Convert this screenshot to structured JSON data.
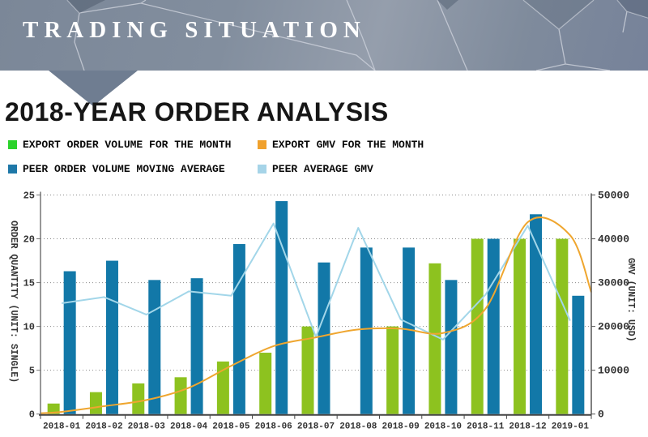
{
  "banner": {
    "title": "TRADING SITUATION"
  },
  "heading": "2018-YEAR ORDER ANALYSIS",
  "legend": {
    "items": [
      {
        "label": "EXPORT ORDER VOLUME FOR THE MONTH",
        "color": "#2bd32b",
        "row": 0,
        "col": 0
      },
      {
        "label": "EXPORT GMV FOR THE MONTH",
        "color": "#f0a12d",
        "row": 0,
        "col": 1
      },
      {
        "label": "PEER ORDER VOLUME MOVING AVERAGE",
        "color": "#1e78a8",
        "row": 1,
        "col": 0
      },
      {
        "label": "PEER AVERAGE GMV",
        "color": "#a6d4e8",
        "row": 1,
        "col": 1
      }
    ]
  },
  "chart_data": {
    "type": "combo-bar-line",
    "title": "2018-YEAR ORDER ANALYSIS",
    "categories": [
      "2018-01",
      "2018-02",
      "2018-03",
      "2018-04",
      "2018-05",
      "2018-06",
      "2018-07",
      "2018-08",
      "2018-09",
      "2018-10",
      "2018-11",
      "2018-12",
      "2019-01"
    ],
    "series": [
      {
        "name": "EXPORT ORDER VOLUME FOR THE MONTH",
        "type": "bar",
        "axis": "left",
        "color": "#8dc21f",
        "values": [
          1.2,
          2.5,
          3.5,
          4.2,
          6,
          7,
          10,
          0,
          10,
          17.2,
          20,
          20,
          20
        ]
      },
      {
        "name": "PEER ORDER VOLUME MOVING AVERAGE",
        "type": "bar",
        "axis": "left",
        "color": "#1278a8",
        "values": [
          16.3,
          17.5,
          15.3,
          15.5,
          19.4,
          24.3,
          17.3,
          19,
          19,
          15.3,
          20,
          22.8,
          13.5
        ]
      },
      {
        "name": "EXPORT GMV FOR THE MONTH",
        "type": "line",
        "smooth": true,
        "axis": "right",
        "color": "#efa62f",
        "values": [
          500,
          1800,
          3200,
          6000,
          11000,
          15500,
          17500,
          19300,
          19500,
          18500,
          24000,
          43800,
          40800
        ],
        "edge_left": 200,
        "edge_right": 27800
      },
      {
        "name": "PEER AVERAGE GMV",
        "type": "line",
        "smooth": false,
        "axis": "right",
        "color": "#a2d6e9",
        "values": [
          25300,
          26700,
          22700,
          28000,
          27000,
          43500,
          17600,
          42500,
          21600,
          17000,
          27200,
          43000,
          21300
        ]
      }
    ],
    "left_axis": {
      "title": "ORDER QUANTITY (UNIT: SINGLE)",
      "min": 0,
      "max": 25,
      "step": 5,
      "ticks": [
        "0",
        "5",
        "10",
        "15",
        "20",
        "25"
      ]
    },
    "right_axis": {
      "title": "GMV (UNIT: USD)",
      "min": 0,
      "max": 50000,
      "step": 10000,
      "ticks": [
        "0",
        "10000",
        "20000",
        "30000",
        "40000",
        "50000"
      ]
    },
    "grid": true,
    "legend_position": "top"
  }
}
